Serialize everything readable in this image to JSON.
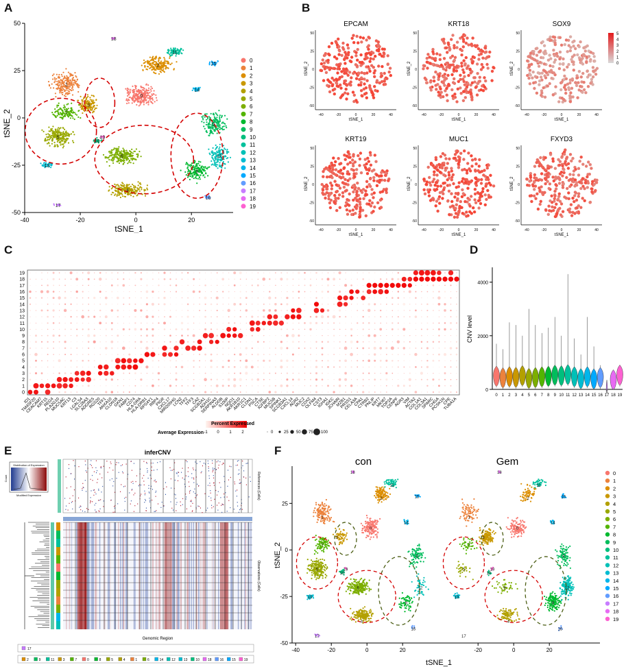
{
  "figure": {
    "panel_labels": [
      "A",
      "B",
      "C",
      "D",
      "E",
      "F"
    ]
  },
  "chart_data": [
    {
      "id": "A",
      "type": "scatter",
      "title": "",
      "xlabel": "tSNE_1",
      "ylabel": "tSNE_2",
      "xlim": [
        -40,
        35
      ],
      "ylim": [
        -50,
        50
      ],
      "xticks": [
        "-40",
        "-20",
        "0",
        "20"
      ],
      "yticks": [
        "-50",
        "-25",
        "0",
        "25",
        "50"
      ],
      "legend": [
        "0",
        "1",
        "2",
        "3",
        "4",
        "5",
        "6",
        "7",
        "8",
        "9",
        "10",
        "11",
        "12",
        "13",
        "14",
        "15",
        "16",
        "17",
        "18",
        "19"
      ],
      "cluster_labels": [
        {
          "label": "0",
          "x": 2,
          "y": 12
        },
        {
          "label": "1",
          "x": -25,
          "y": 18
        },
        {
          "label": "2",
          "x": 8,
          "y": 28
        },
        {
          "label": "3",
          "x": -17,
          "y": 7
        },
        {
          "label": "4",
          "x": -3,
          "y": -38
        },
        {
          "label": "5",
          "x": -28,
          "y": -10
        },
        {
          "label": "6",
          "x": -5,
          "y": -20
        },
        {
          "label": "7",
          "x": -25,
          "y": 3
        },
        {
          "label": "8",
          "x": 22,
          "y": -28
        },
        {
          "label": "9",
          "x": 28,
          "y": -3
        },
        {
          "label": "10",
          "x": -14,
          "y": -12
        },
        {
          "label": "11",
          "x": 14,
          "y": 35
        },
        {
          "label": "12",
          "x": 30,
          "y": -20
        },
        {
          "label": "13",
          "x": -32,
          "y": -25
        },
        {
          "label": "14",
          "x": 22,
          "y": 15
        },
        {
          "label": "15",
          "x": 28,
          "y": 29
        },
        {
          "label": "16",
          "x": 26,
          "y": -42
        },
        {
          "label": "17",
          "x": -28,
          "y": -46
        },
        {
          "label": "18",
          "x": -8,
          "y": 42
        },
        {
          "label": "19",
          "x": -12,
          "y": -10
        }
      ]
    },
    {
      "id": "B",
      "type": "scatter",
      "xlabel": "tSNE_1",
      "ylabel": "tSNE_2",
      "genes": [
        "EPCAM",
        "KRT18",
        "SOX9",
        "KRT19",
        "MUC1",
        "FXYD3"
      ],
      "xticks": [
        "-40",
        "-20",
        "0",
        "20",
        "40"
      ],
      "yticks": [
        "-50",
        "-25",
        "0",
        "25",
        "50"
      ],
      "colorbar_ticks": [
        "5",
        "4",
        "3",
        "2",
        "1",
        "0"
      ]
    },
    {
      "id": "C",
      "type": "dotplot",
      "clusters": [
        "19",
        "18",
        "17",
        "16",
        "15",
        "14",
        "13",
        "12",
        "11",
        "10",
        "9",
        "8",
        "7",
        "6",
        "5",
        "4",
        "3",
        "2",
        "1",
        "0"
      ],
      "genes": [
        "ID1",
        "TM4SF20",
        "CEACAM7",
        "KRT15",
        "REG4",
        "PLA2G10",
        "MUC5AC",
        "KRT13",
        "C3",
        "LGALS4",
        "SLC26A3",
        "ADGRE5",
        "RGS20",
        "TFF1",
        "ANXA10",
        "CLDN18",
        "GKN1",
        "FABP1",
        "CD74",
        "HLA-DRA",
        "HLA-DRB1",
        "RPS4Y1",
        "RBP4",
        "PIGR",
        "CXCL17",
        "MIR205HG",
        "LCN2",
        "TFF2",
        "TFF3",
        "CA2",
        "SCGB2A1",
        "ADH1C",
        "SERPINA3",
        "ALDOB",
        "S100P",
        "NQO1",
        "AKR1B10",
        "AKR1C1",
        "CLDN1",
        "PSCA",
        "CTSE",
        "IGFBP2",
        "MUC5B",
        "SPINK1",
        "SCGB3A1",
        "CXCL14",
        "AGR2",
        "MUC2",
        "CDX2",
        "OLFM4",
        "CST3",
        "IGHA1",
        "IGKC",
        "JCHAIN",
        "MZB1",
        "PRSS1",
        "CELA3A",
        "CPA1",
        "CTRB2",
        "PNLIP",
        "KRT7",
        "MKI67",
        "TOP2A",
        "CENPF",
        "AGR3",
        "VIM",
        "ACTA2",
        "COL1A1",
        "COL3A1",
        "SPARC",
        "CHGA",
        "PCSK1N",
        "CPE",
        "TUBA1A"
      ],
      "legend_title_avg": "Average Expression",
      "legend_title_pct": "Percent Expressed",
      "avg_ticks": [
        "-1",
        "0",
        "1",
        "2"
      ],
      "pct_ticks": [
        "0",
        "25",
        "50",
        "75",
        "100"
      ]
    },
    {
      "id": "D",
      "type": "violin",
      "ylabel": "CNV level",
      "ylim": [
        0,
        4500
      ],
      "yticks": [
        "0",
        "2000",
        "4000"
      ],
      "categories": [
        "0",
        "1",
        "2",
        "3",
        "4",
        "5",
        "6",
        "7",
        "8",
        "9",
        "10",
        "11",
        "12",
        "13",
        "14",
        "15",
        "16",
        "17",
        "18",
        "19"
      ],
      "medians": [
        520,
        460,
        500,
        480,
        540,
        440,
        470,
        500,
        520,
        560,
        540,
        580,
        500,
        430,
        500,
        420,
        470,
        0,
        380,
        560
      ],
      "max": [
        1700,
        1500,
        2500,
        2400,
        2000,
        3000,
        2400,
        2100,
        2300,
        2700,
        2000,
        4300,
        1900,
        1300,
        2700,
        1600,
        900,
        100,
        600,
        900
      ]
    },
    {
      "id": "E",
      "type": "heatmap",
      "title": "inferCNV",
      "xlabel": "Genomic Region",
      "inset_title": "Distribution of Expression",
      "inset_xlabel": "Modified Expression",
      "inset_ylabel": "Count",
      "ref_label": "References (Cells)",
      "obs_label": "Observations (Cells)",
      "ref_legend": [
        "17"
      ],
      "obs_legend": [
        "2",
        "9",
        "11",
        "3",
        "7",
        "0",
        "8",
        "5",
        "4",
        "1",
        "6",
        "14",
        "12",
        "13",
        "10",
        "18",
        "16",
        "15",
        "19"
      ]
    },
    {
      "id": "F",
      "type": "scatter",
      "titles": [
        "con",
        "Gem"
      ],
      "xlabel": "tSNE_1",
      "ylabel": "tSNE_2",
      "xticks": [
        "-40",
        "-20",
        "0",
        "20"
      ],
      "xticks_right": [
        "-20",
        "0",
        "20"
      ],
      "yticks": [
        "-50",
        "-25",
        "0",
        "25"
      ],
      "legend": [
        "0",
        "1",
        "2",
        "3",
        "4",
        "5",
        "6",
        "7",
        "8",
        "9",
        "10",
        "11",
        "12",
        "13",
        "14",
        "15",
        "16",
        "17",
        "18",
        "19"
      ]
    }
  ],
  "palette": [
    "#f8766d",
    "#ec823c",
    "#dc8e00",
    "#c99800",
    "#b3a000",
    "#99a800",
    "#7cae00",
    "#53b400",
    "#00b92f",
    "#00bd5c",
    "#00bf7d",
    "#00c19c",
    "#00c0b7",
    "#00bcd1",
    "#00b6eb",
    "#00a9ff",
    "#619cff",
    "#c77cff",
    "#e76bf3",
    "#fd61d1"
  ]
}
